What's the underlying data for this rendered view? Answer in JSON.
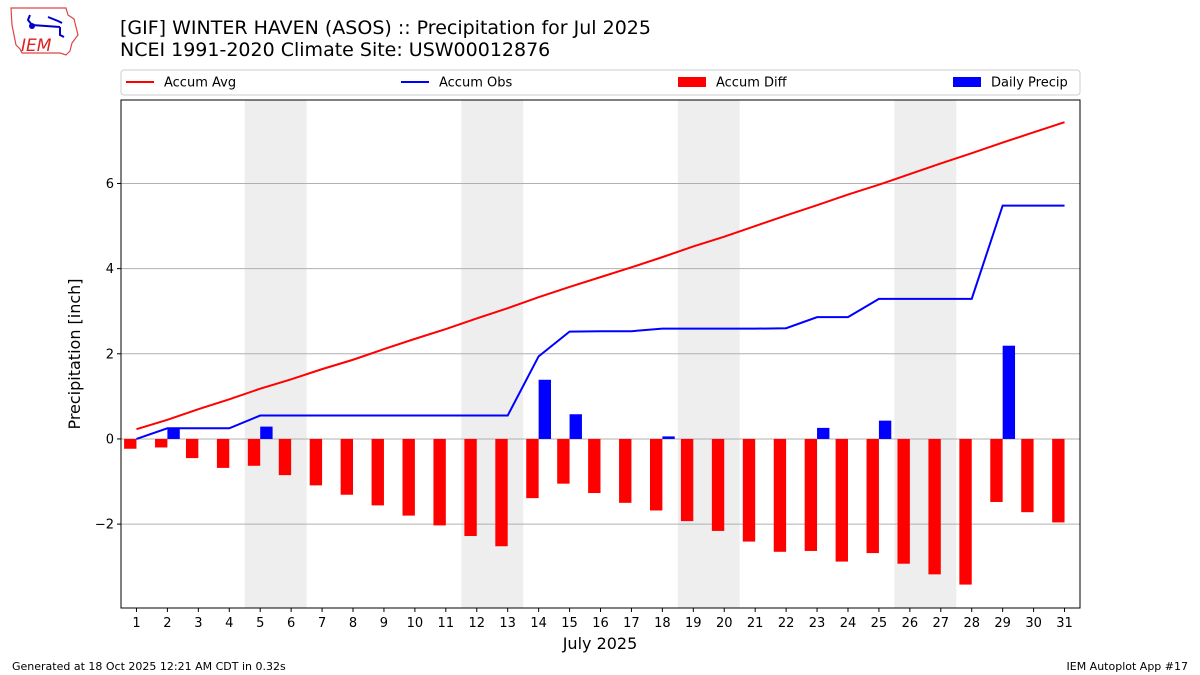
{
  "header": {
    "title_line1": "[GIF] WINTER HAVEN (ASOS) :: Precipitation for Jul 2025",
    "title_line2": "NCEI 1991-2020 Climate Site: USW00012876",
    "logo_text": "IEM"
  },
  "footer": {
    "generated": "Generated at 18 Oct 2025 12:21 AM CDT in 0.32s",
    "app": "IEM Autoplot App #17"
  },
  "chart_data": {
    "type": "bar",
    "xlabel": "July 2025",
    "ylabel": "Precipitation [inch]",
    "xlim": [
      0.5,
      31.5
    ],
    "ylim": [
      -3.97,
      7.96
    ],
    "yticks": [
      -2,
      0,
      2,
      4,
      6
    ],
    "ytick_labels": [
      "−2",
      "0",
      "2",
      "4",
      "6"
    ],
    "grid": "horizontal",
    "legend_placement": "top",
    "weekend_shading": [
      [
        4.5,
        6.5
      ],
      [
        11.5,
        13.5
      ],
      [
        18.5,
        20.5
      ],
      [
        25.5,
        27.5
      ]
    ],
    "x": [
      1,
      2,
      3,
      4,
      5,
      6,
      7,
      8,
      9,
      10,
      11,
      12,
      13,
      14,
      15,
      16,
      17,
      18,
      19,
      20,
      21,
      22,
      23,
      24,
      25,
      26,
      27,
      28,
      29,
      30,
      31
    ],
    "series": [
      {
        "name": "Accum Avg",
        "kind": "line",
        "color": "#ff0000",
        "values": [
          0.23,
          0.45,
          0.7,
          0.93,
          1.18,
          1.4,
          1.64,
          1.86,
          2.11,
          2.35,
          2.58,
          2.83,
          3.07,
          3.33,
          3.57,
          3.8,
          4.03,
          4.27,
          4.52,
          4.75,
          5.0,
          5.25,
          5.49,
          5.74,
          5.97,
          6.22,
          6.47,
          6.71,
          6.96,
          7.2,
          7.44
        ]
      },
      {
        "name": "Accum Obs",
        "kind": "line",
        "color": "#0000ff",
        "values": [
          0.0,
          0.25,
          0.25,
          0.25,
          0.55,
          0.55,
          0.55,
          0.55,
          0.55,
          0.55,
          0.55,
          0.55,
          0.55,
          1.94,
          2.52,
          2.53,
          2.53,
          2.59,
          2.59,
          2.59,
          2.59,
          2.6,
          2.86,
          2.86,
          3.29,
          3.29,
          3.29,
          3.29,
          5.48,
          5.48,
          5.48
        ]
      },
      {
        "name": "Accum Diff",
        "kind": "bar",
        "color": "#ff0000",
        "values": [
          -0.23,
          -0.2,
          -0.45,
          -0.68,
          -0.63,
          -0.85,
          -1.09,
          -1.31,
          -1.56,
          -1.8,
          -2.03,
          -2.28,
          -2.52,
          -1.39,
          -1.05,
          -1.27,
          -1.5,
          -1.68,
          -1.93,
          -2.16,
          -2.41,
          -2.65,
          -2.63,
          -2.88,
          -2.68,
          -2.93,
          -3.18,
          -3.42,
          -1.48,
          -1.72,
          -1.96
        ]
      },
      {
        "name": "Daily Precip",
        "kind": "bar",
        "color": "#0000ff",
        "values": [
          0,
          0.25,
          0,
          0,
          0.29,
          0,
          0,
          0,
          0,
          0,
          0,
          0,
          0,
          1.39,
          0.58,
          0,
          0,
          0.06,
          0,
          0,
          0,
          0,
          0.26,
          0,
          0.43,
          0,
          0,
          0,
          2.19,
          0,
          0
        ]
      }
    ]
  }
}
